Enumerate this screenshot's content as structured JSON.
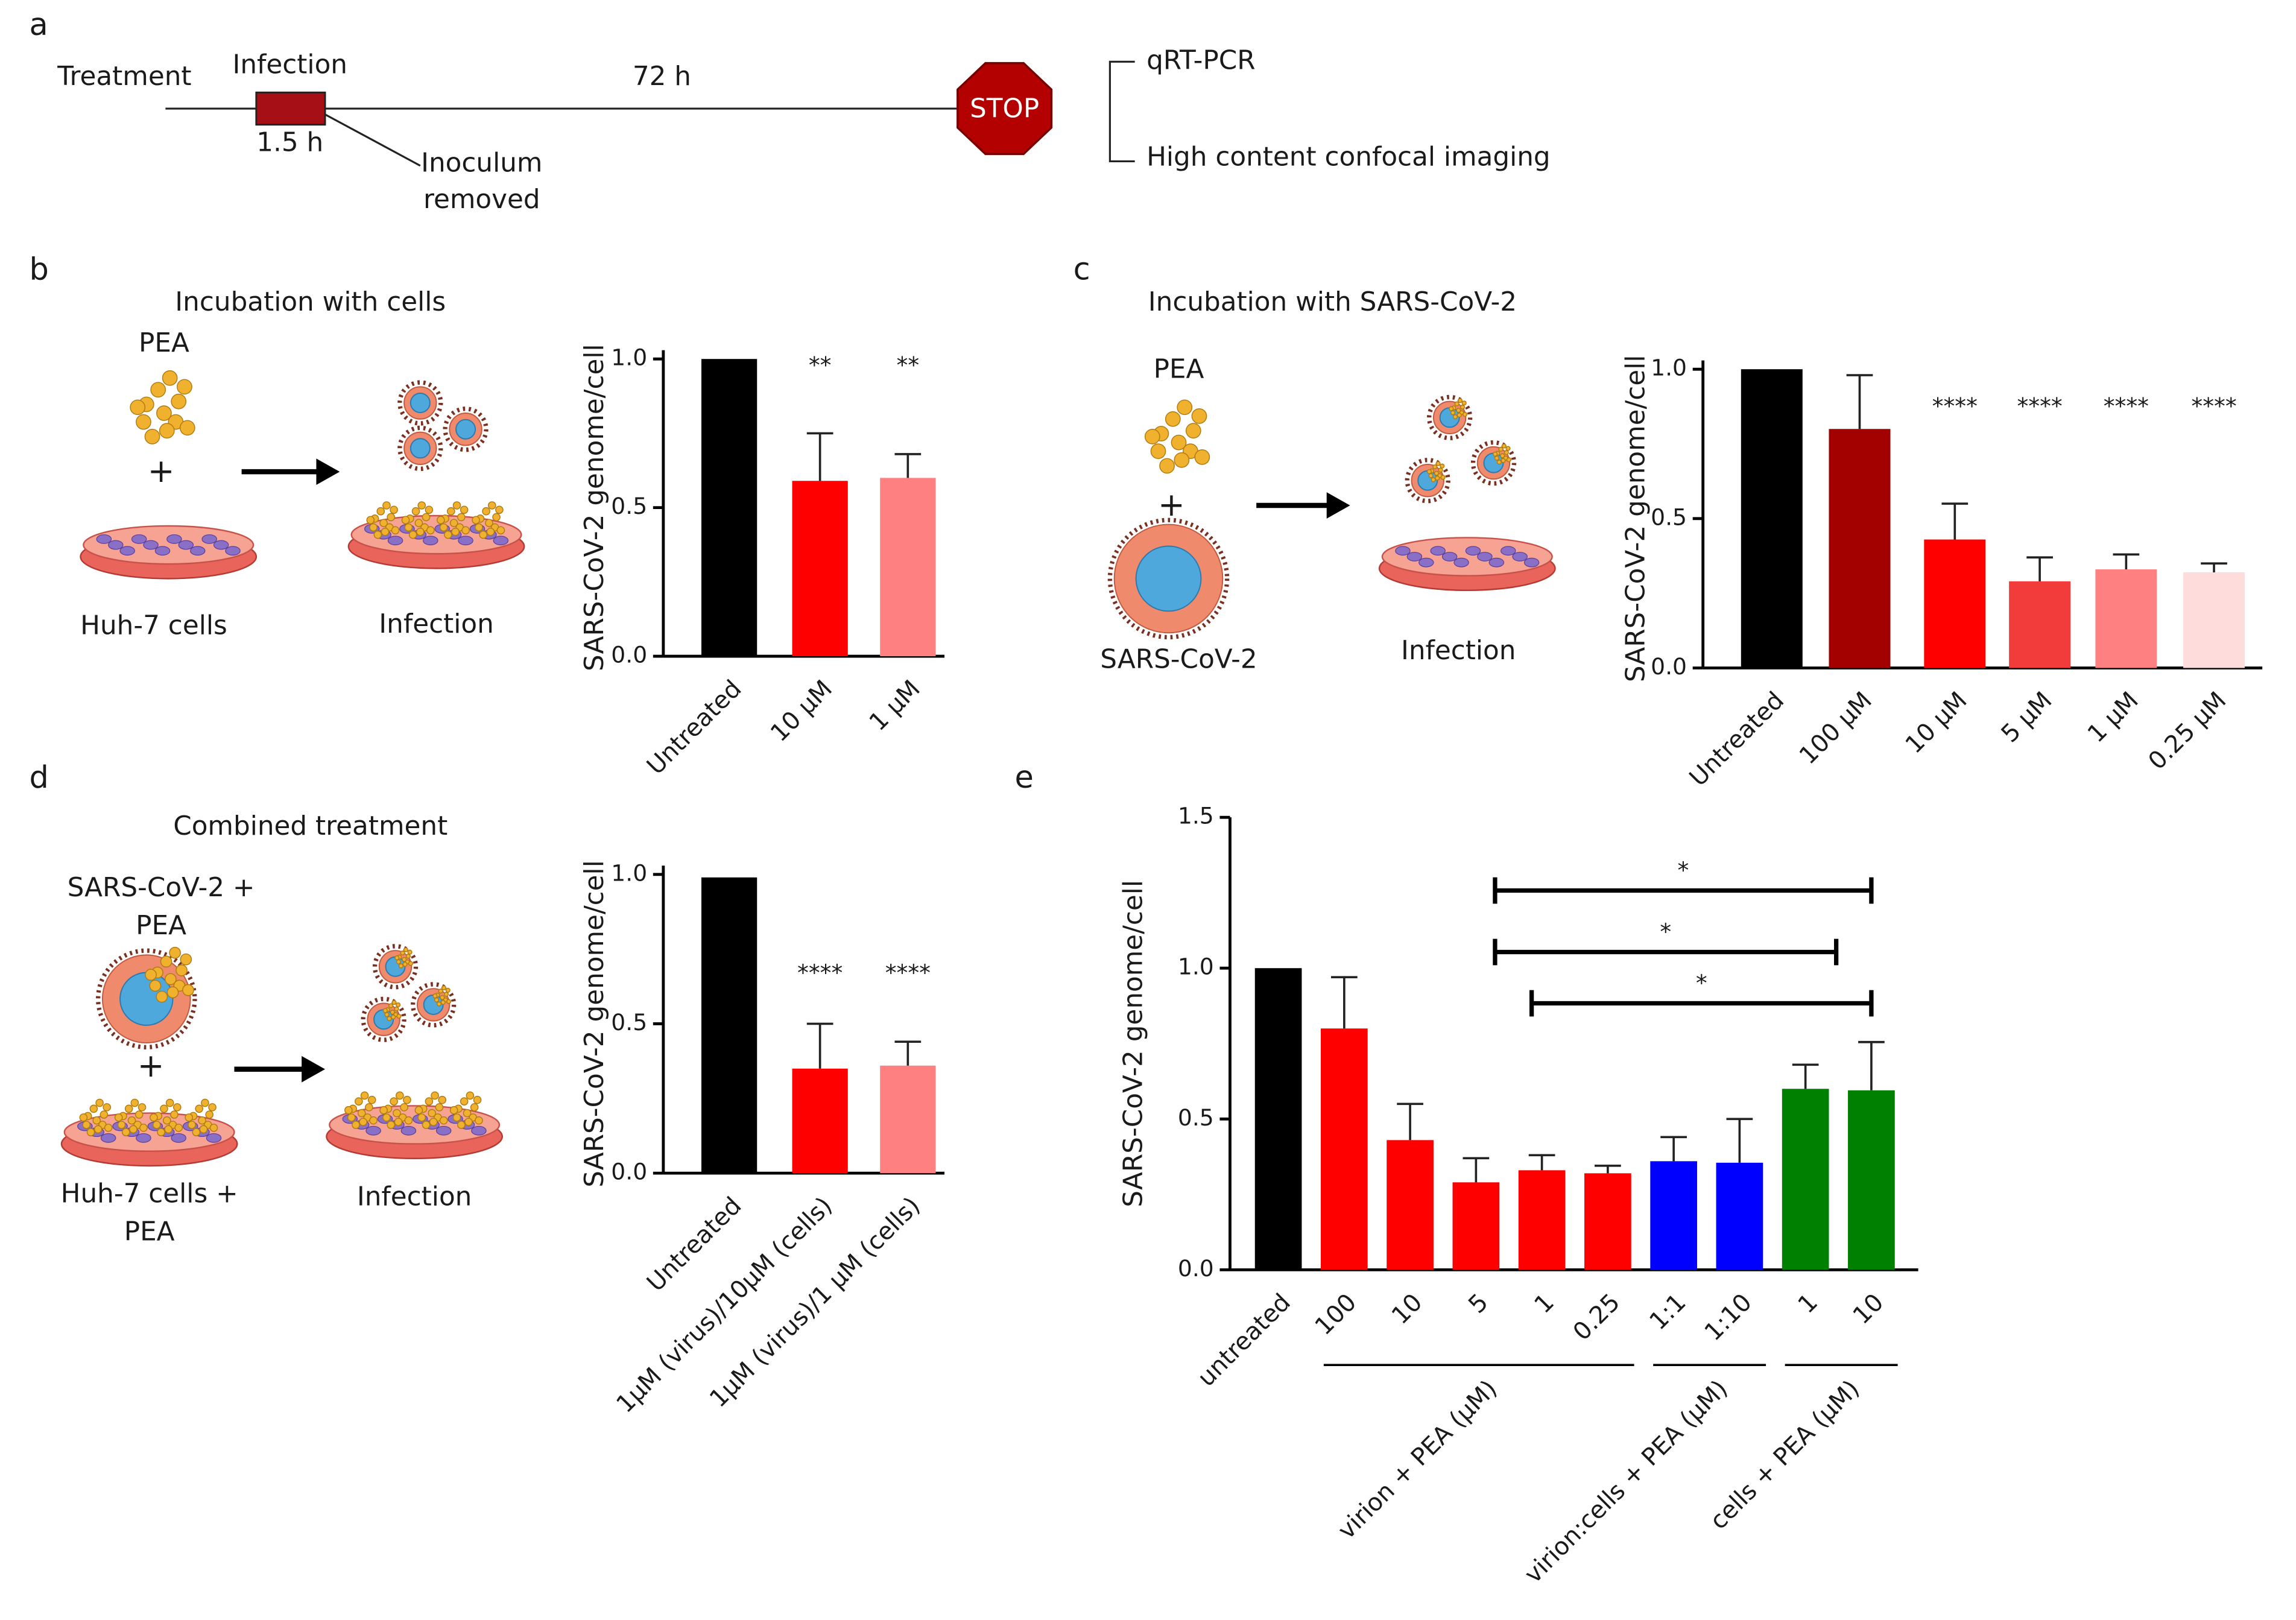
{
  "panels": {
    "a": {
      "label": "a",
      "treatment": "Treatment",
      "infection": "Infection",
      "infection_duration": "1.5 h",
      "incubation": "72 h",
      "stop": "STOP",
      "inoculum": [
        "Inoculum",
        "removed"
      ],
      "readouts": [
        "qRT-PCR",
        "High content confocal  imaging"
      ]
    },
    "b": {
      "label": "b",
      "title": "Incubation with cells",
      "compound": "PEA",
      "plus": "+",
      "cells": "Huh-7 cells",
      "result": "Infection"
    },
    "c": {
      "label": "c",
      "title": "Incubation with SARS-CoV-2",
      "compound": "PEA",
      "plus": "+",
      "virus": "SARS-CoV-2",
      "result": "Infection"
    },
    "d": {
      "label": "d",
      "title": "Combined treatment",
      "virus": [
        "SARS-CoV-2 +",
        "PEA"
      ],
      "plus": "+",
      "cells": [
        "Huh-7 cells  +",
        "PEA"
      ],
      "result": "Infection"
    },
    "e": {
      "label": "e"
    }
  },
  "chart_data": [
    {
      "type": "bar",
      "y_label": "SARS-CoV-2 genome/cell",
      "categories": [
        "Untreated",
        "10 µM",
        "1 µM"
      ],
      "values": [
        1.0,
        0.59,
        0.6
      ],
      "errors": [
        null,
        0.16,
        0.08
      ],
      "colors": [
        "#000000",
        "#ff0000",
        "#ff8080"
      ],
      "annotations": [
        null,
        "**",
        "**"
      ],
      "ylim": [
        0,
        1
      ],
      "yticks": [
        {
          "value": 0,
          "label": "0.0"
        },
        0.5,
        {
          "value": 1,
          "label": "1.0"
        }
      ]
    },
    {
      "type": "bar",
      "y_label": "SARS-CoV-2 genome/cell",
      "categories": [
        "Untreated",
        "100 µM",
        "10 µM",
        "5 µM",
        "1 µM",
        "0.25 µM"
      ],
      "values": [
        1.0,
        0.8,
        0.43,
        0.29,
        0.33,
        0.32
      ],
      "errors": [
        null,
        0.18,
        0.12,
        0.08,
        0.05,
        0.03
      ],
      "colors": [
        "#000000",
        "#a30000",
        "#ff0000",
        "#f23c3c",
        "#ff8080",
        "#ffdcdc"
      ],
      "annotations": [
        null,
        null,
        "****",
        "****",
        "****",
        "****"
      ],
      "ylim": [
        0,
        1
      ],
      "yticks": [
        {
          "value": 0,
          "label": "0.0"
        },
        0.5,
        {
          "value": 1,
          "label": "1.0"
        }
      ]
    },
    {
      "type": "bar",
      "y_label": "SARS-CoV-2 genome/cell",
      "categories": [
        "Untreated",
        "1µM (virus)/10µM (cells)",
        "1µM (virus)/1 µM (cells)"
      ],
      "values": [
        0.99,
        0.35,
        0.36
      ],
      "errors": [
        null,
        0.15,
        0.08
      ],
      "colors": [
        "#000000",
        "#ff0000",
        "#ff8080"
      ],
      "annotations": [
        null,
        "****",
        "****"
      ],
      "ylim": [
        0,
        1
      ],
      "yticks": [
        {
          "value": 0,
          "label": "0.0"
        },
        0.5,
        {
          "value": 1,
          "label": "1.0"
        }
      ]
    },
    {
      "type": "bar",
      "y_label": "SARS-CoV-2 genome/cell",
      "categories": [
        "untreated",
        "100",
        "10",
        "5",
        "1",
        "0.25",
        "1:1",
        "1:10",
        "1",
        "10"
      ],
      "category_groups": [
        null,
        "virion + PEA (µM)",
        "virion + PEA (µM)",
        "virion + PEA (µM)",
        "virion + PEA (µM)",
        "virion + PEA (µM)",
        "virion:cells + PEA (µM)",
        "virion:cells + PEA (µM)",
        "cells + PEA (µM)",
        "cells + PEA (µM)"
      ],
      "values": [
        1.0,
        0.8,
        0.43,
        0.29,
        0.33,
        0.32,
        0.36,
        0.355,
        0.6,
        0.595
      ],
      "errors": [
        null,
        0.17,
        0.12,
        0.08,
        0.05,
        0.025,
        0.08,
        0.145,
        0.08,
        0.16
      ],
      "colors": [
        "#000000",
        "#ff0000",
        "#ff0000",
        "#ff0000",
        "#ff0000",
        "#ff0000",
        "#0000ff",
        "#0000ff",
        "#008000",
        "#008000"
      ],
      "brackets": [
        "*",
        "*",
        "*"
      ],
      "ylim": [
        0,
        1.5
      ],
      "yticks": [
        {
          "value": 0,
          "label": "0.0"
        },
        0.5,
        {
          "value": 1,
          "label": "1.0"
        },
        1.5
      ]
    }
  ]
}
